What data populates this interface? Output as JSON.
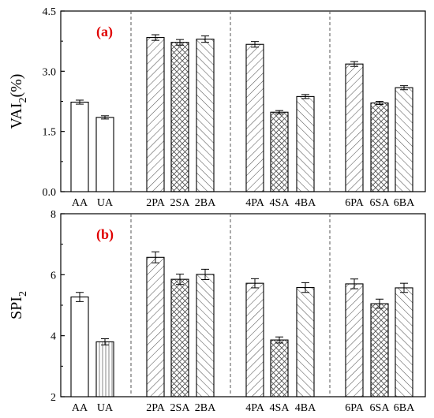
{
  "chart_data": [
    {
      "type": "bar",
      "panel_label": "(a)",
      "ylabel_main": "VAI",
      "ylabel_sub": "2",
      "ylabel_unit": "(%)",
      "ylim": [
        0.0,
        4.5
      ],
      "yticks": [
        "0.0",
        "1.5",
        "3.0",
        "4.5"
      ],
      "categories": [
        "AA",
        "UA",
        "2PA",
        "2SA",
        "2BA",
        "4PA",
        "4SA",
        "4BA",
        "6PA",
        "6SA",
        "6BA"
      ],
      "values": [
        2.23,
        1.85,
        3.84,
        3.72,
        3.8,
        3.67,
        1.98,
        2.37,
        3.18,
        2.21,
        2.59
      ],
      "errors": [
        0.05,
        0.04,
        0.07,
        0.07,
        0.08,
        0.07,
        0.04,
        0.05,
        0.06,
        0.04,
        0.05
      ],
      "patterns": [
        "none",
        "none",
        "diag",
        "cross",
        "back",
        "diag",
        "cross",
        "back",
        "diag",
        "cross",
        "back"
      ]
    },
    {
      "type": "bar",
      "panel_label": "(b)",
      "ylabel_main": "SPI",
      "ylabel_sub": "2",
      "ylabel_unit": "",
      "ylim": [
        2,
        8
      ],
      "yticks": [
        "2",
        "4",
        "6",
        "8"
      ],
      "categories": [
        "AA",
        "UA",
        "2PA",
        "2SA",
        "2BA",
        "4PA",
        "4SA",
        "4BA",
        "6PA",
        "6SA",
        "6BA"
      ],
      "values": [
        5.27,
        3.8,
        6.57,
        5.85,
        6.01,
        5.72,
        3.86,
        5.58,
        5.7,
        5.05,
        5.57
      ],
      "errors": [
        0.15,
        0.1,
        0.18,
        0.17,
        0.17,
        0.15,
        0.1,
        0.16,
        0.16,
        0.15,
        0.15
      ],
      "patterns": [
        "none",
        "vert",
        "diag",
        "cross",
        "back",
        "diag",
        "cross",
        "back",
        "diag",
        "cross",
        "back"
      ]
    }
  ],
  "colors": {
    "bar_stroke": "#000000",
    "pattern": "#555555",
    "panel_label": "#e00000",
    "separator": "#555555"
  }
}
